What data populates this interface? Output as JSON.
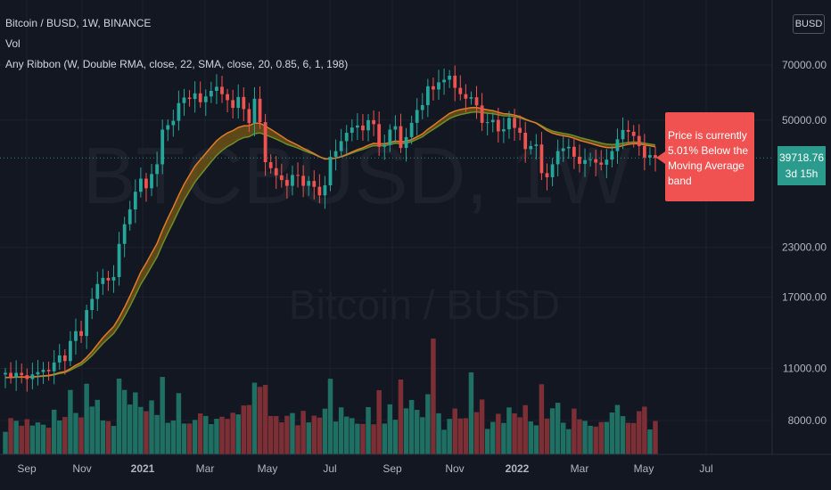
{
  "legend": {
    "symbol": "Bitcoin / BUSD, 1W, BINANCE",
    "volume": "Vol",
    "indicator": "Any Ribbon (W, Double RMA, close, 22, SMA, close, 20, 0.85, 6, 1, 198)"
  },
  "scale_button": "BUSD",
  "watermark": {
    "line1": "BTCBUSD, 1W",
    "line2": "Bitcoin / BUSD"
  },
  "callout": {
    "line1": "Price is currently",
    "line2": "5.01% Below the",
    "line3": "Moving Average band"
  },
  "price_tag": {
    "price": "39718.76",
    "countdown": "3d 15h"
  },
  "colors": {
    "up": "#26a69a",
    "down": "#ef5350",
    "ribbon_fast": "#e07b2c",
    "ribbon_slow": "#6b8f2a",
    "band": "#7a5a14",
    "bg": "#131722"
  },
  "chart_data": {
    "type": "candlestick",
    "y_axis_scale": "log",
    "y_ticks": [
      "70000.00",
      "50000.00",
      "23000.00",
      "17000.00",
      "11000.00",
      "8000.00"
    ],
    "x_ticks": [
      "Sep",
      "Nov",
      "2021",
      "Mar",
      "May",
      "Jul",
      "Sep",
      "Nov",
      "2022",
      "Mar",
      "May",
      "Jul"
    ],
    "last_price": 39718.76,
    "closes": [
      10700,
      10400,
      10700,
      10550,
      10300,
      10600,
      10750,
      10900,
      10800,
      11400,
      11900,
      11500,
      13000,
      13800,
      13400,
      15700,
      16800,
      18400,
      19100,
      18800,
      19200,
      23500,
      26500,
      29000,
      32300,
      35000,
      33000,
      36000,
      38200,
      47200,
      48500,
      49800,
      55500,
      57400,
      56900,
      58900,
      55800,
      57800,
      59800,
      61300,
      58600,
      56500,
      53900,
      57600,
      53500,
      49100,
      57000,
      49400,
      38700,
      37300,
      35700,
      34700,
      33500,
      35800,
      35600,
      33500,
      34500,
      33300,
      31600,
      33600,
      40000,
      41400,
      44000,
      46300,
      47800,
      48400,
      47000,
      50000,
      48800,
      42500,
      43000,
      47200,
      48200,
      42200,
      45100,
      49200,
      53200,
      54800,
      61500,
      60300,
      63000,
      64000,
      65600,
      60900,
      58600,
      57000,
      57500,
      54700,
      49200,
      49400,
      50100,
      46700,
      47300,
      50700,
      47700,
      46300,
      41900,
      42700,
      43100,
      36200,
      35300,
      38200,
      41400,
      42100,
      42500,
      40000,
      38300,
      39200,
      39400,
      38600,
      38100,
      39300,
      41400,
      44500,
      47100,
      46600,
      45400,
      42700,
      39800,
      40400,
      39700
    ]
  }
}
